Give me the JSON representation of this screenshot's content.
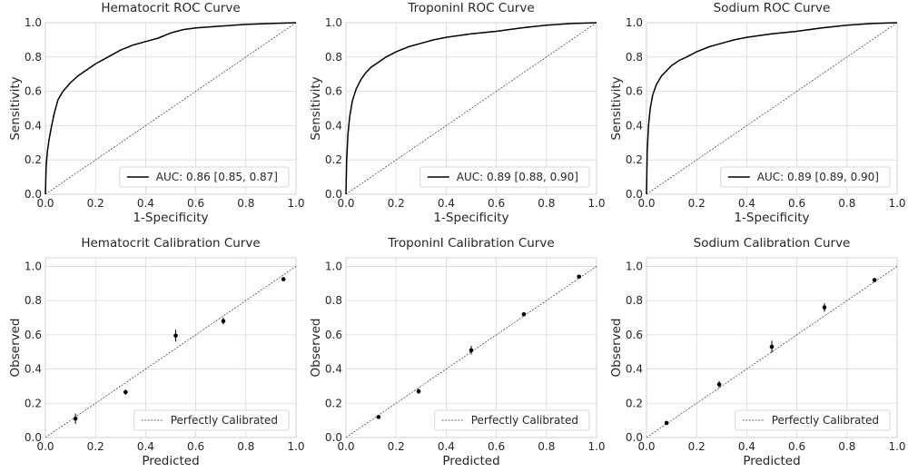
{
  "chart_data": [
    {
      "type": "line",
      "title": "Hematocrit ROC Curve",
      "xlabel": "1-Specificity",
      "ylabel": "Sensitivity",
      "xlim": [
        0,
        1
      ],
      "ylim": [
        0,
        1
      ],
      "xticks": [
        "0.0",
        "0.2",
        "0.4",
        "0.6",
        "0.8",
        "1.0"
      ],
      "yticks": [
        "0.0",
        "0.2",
        "0.4",
        "0.6",
        "0.8",
        "1.0"
      ],
      "grid": true,
      "legend_position": "lower-right",
      "diagonal": true,
      "series": [
        {
          "name": "AUC: 0.86 [0.85, 0.87]",
          "x": [
            0,
            0.003,
            0.008,
            0.015,
            0.025,
            0.035,
            0.05,
            0.07,
            0.1,
            0.13,
            0.16,
            0.2,
            0.25,
            0.3,
            0.35,
            0.4,
            0.45,
            0.5,
            0.55,
            0.6,
            0.7,
            0.8,
            0.9,
            1.0
          ],
          "y": [
            0,
            0.16,
            0.25,
            0.32,
            0.4,
            0.47,
            0.55,
            0.6,
            0.65,
            0.69,
            0.72,
            0.76,
            0.8,
            0.84,
            0.87,
            0.89,
            0.91,
            0.94,
            0.96,
            0.97,
            0.98,
            0.99,
            0.995,
            1.0
          ]
        }
      ]
    },
    {
      "type": "line",
      "title": "TroponinI ROC Curve",
      "xlabel": "1-Specificity",
      "ylabel": "Sensitivity",
      "xlim": [
        0,
        1
      ],
      "ylim": [
        0,
        1
      ],
      "xticks": [
        "0.0",
        "0.2",
        "0.4",
        "0.6",
        "0.8",
        "1.0"
      ],
      "yticks": [
        "0.0",
        "0.2",
        "0.4",
        "0.6",
        "0.8",
        "1.0"
      ],
      "grid": true,
      "legend_position": "lower-right",
      "diagonal": true,
      "series": [
        {
          "name": "AUC: 0.89 [0.88, 0.90]",
          "x": [
            0,
            0.003,
            0.008,
            0.015,
            0.025,
            0.04,
            0.06,
            0.08,
            0.1,
            0.13,
            0.16,
            0.2,
            0.25,
            0.3,
            0.35,
            0.4,
            0.5,
            0.6,
            0.7,
            0.8,
            0.9,
            1.0
          ],
          "y": [
            0,
            0.2,
            0.35,
            0.45,
            0.54,
            0.61,
            0.67,
            0.71,
            0.74,
            0.77,
            0.8,
            0.83,
            0.86,
            0.88,
            0.9,
            0.915,
            0.935,
            0.95,
            0.97,
            0.985,
            0.995,
            1.0
          ]
        }
      ]
    },
    {
      "type": "line",
      "title": "Sodium ROC Curve",
      "xlabel": "1-Specificity",
      "ylabel": "Sensitivity",
      "xlim": [
        0,
        1
      ],
      "ylim": [
        0,
        1
      ],
      "xticks": [
        "0.0",
        "0.2",
        "0.4",
        "0.6",
        "0.8",
        "1.0"
      ],
      "yticks": [
        "0.0",
        "0.2",
        "0.4",
        "0.6",
        "0.8",
        "1.0"
      ],
      "grid": true,
      "legend_position": "lower-right",
      "diagonal": true,
      "series": [
        {
          "name": "AUC: 0.89 [0.89, 0.90]",
          "x": [
            0,
            0.003,
            0.008,
            0.015,
            0.025,
            0.04,
            0.06,
            0.08,
            0.1,
            0.13,
            0.16,
            0.2,
            0.25,
            0.3,
            0.35,
            0.4,
            0.5,
            0.6,
            0.7,
            0.8,
            0.9,
            1.0
          ],
          "y": [
            0,
            0.25,
            0.4,
            0.5,
            0.58,
            0.64,
            0.69,
            0.72,
            0.75,
            0.78,
            0.8,
            0.83,
            0.86,
            0.88,
            0.9,
            0.915,
            0.935,
            0.95,
            0.97,
            0.985,
            0.995,
            1.0
          ]
        }
      ]
    },
    {
      "type": "scatter",
      "title": "Hematocrit Calibration Curve",
      "xlabel": "Predicted",
      "ylabel": "Observed",
      "xlim": [
        0,
        1
      ],
      "ylim": [
        0,
        1.05
      ],
      "xticks": [
        "0.0",
        "0.2",
        "0.4",
        "0.6",
        "0.8",
        "1.0"
      ],
      "yticks": [
        "0.0",
        "0.2",
        "0.4",
        "0.6",
        "0.8",
        "1.0"
      ],
      "grid": true,
      "legend_position": "lower-right",
      "legend": "Perfectly Calibrated",
      "diagonal": true,
      "points": [
        {
          "x": 0.12,
          "y": 0.11,
          "err": 0.03
        },
        {
          "x": 0.32,
          "y": 0.265,
          "err": 0.015
        },
        {
          "x": 0.52,
          "y": 0.595,
          "err": 0.035
        },
        {
          "x": 0.71,
          "y": 0.68,
          "err": 0.02
        },
        {
          "x": 0.95,
          "y": 0.925,
          "err": 0.01
        }
      ]
    },
    {
      "type": "scatter",
      "title": "TroponinI Calibration Curve",
      "xlabel": "Predicted",
      "ylabel": "Observed",
      "xlim": [
        0,
        1
      ],
      "ylim": [
        0,
        1.05
      ],
      "xticks": [
        "0.0",
        "0.2",
        "0.4",
        "0.6",
        "0.8",
        "1.0"
      ],
      "yticks": [
        "0.0",
        "0.2",
        "0.4",
        "0.6",
        "0.8",
        "1.0"
      ],
      "grid": true,
      "legend_position": "lower-right",
      "legend": "Perfectly Calibrated",
      "diagonal": true,
      "points": [
        {
          "x": 0.13,
          "y": 0.12,
          "err": 0.01
        },
        {
          "x": 0.29,
          "y": 0.27,
          "err": 0.015
        },
        {
          "x": 0.5,
          "y": 0.51,
          "err": 0.025
        },
        {
          "x": 0.71,
          "y": 0.72,
          "err": 0.01
        },
        {
          "x": 0.93,
          "y": 0.94,
          "err": 0.008
        }
      ]
    },
    {
      "type": "scatter",
      "title": "Sodium Calibration Curve",
      "xlabel": "Predicted",
      "ylabel": "Observed",
      "xlim": [
        0,
        1
      ],
      "ylim": [
        0,
        1.05
      ],
      "xticks": [
        "0.0",
        "0.2",
        "0.4",
        "0.6",
        "0.8",
        "1.0"
      ],
      "yticks": [
        "0.0",
        "0.2",
        "0.4",
        "0.6",
        "0.8",
        "1.0"
      ],
      "grid": true,
      "legend_position": "lower-right",
      "legend": "Perfectly Calibrated",
      "diagonal": true,
      "points": [
        {
          "x": 0.08,
          "y": 0.085,
          "err": 0.008
        },
        {
          "x": 0.29,
          "y": 0.31,
          "err": 0.02
        },
        {
          "x": 0.5,
          "y": 0.53,
          "err": 0.035
        },
        {
          "x": 0.71,
          "y": 0.76,
          "err": 0.025
        },
        {
          "x": 0.91,
          "y": 0.92,
          "err": 0.012
        }
      ]
    }
  ]
}
